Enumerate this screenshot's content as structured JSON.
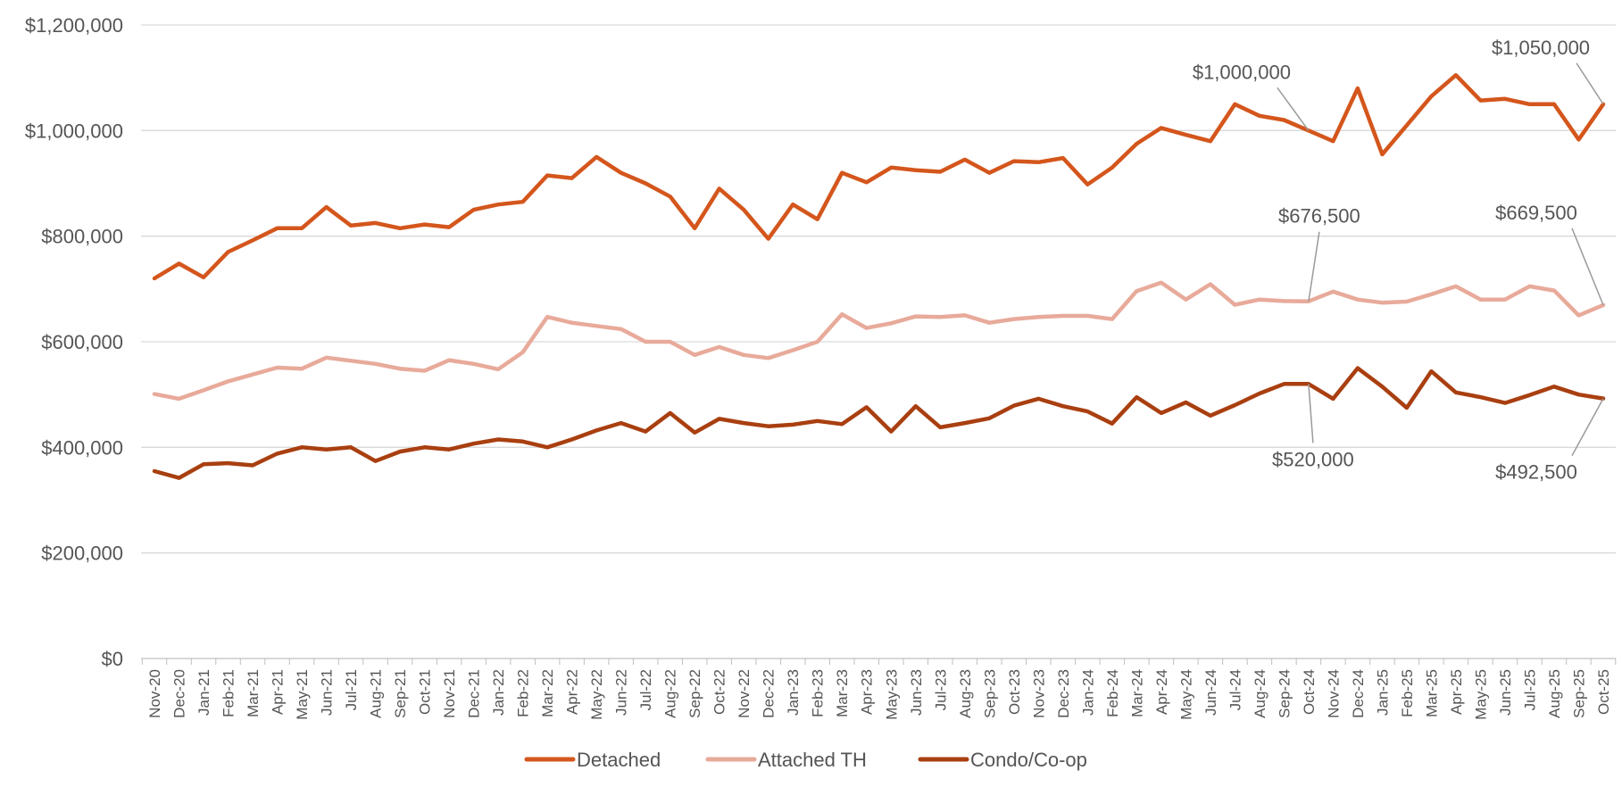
{
  "chart_data": {
    "type": "line",
    "title": "",
    "xlabel": "",
    "ylabel": "",
    "ylim": [
      0,
      1200000
    ],
    "yticks": [
      0,
      200000,
      400000,
      600000,
      800000,
      1000000,
      1200000
    ],
    "ytick_labels": [
      "$0",
      "$200,000",
      "$400,000",
      "$600,000",
      "$800,000",
      "$1,000,000",
      "$1,200,000"
    ],
    "grid": true,
    "legend_position": "bottom-center",
    "categories": [
      "Nov-20",
      "Dec-20",
      "Jan-21",
      "Feb-21",
      "Mar-21",
      "Apr-21",
      "May-21",
      "Jun-21",
      "Jul-21",
      "Aug-21",
      "Sep-21",
      "Oct-21",
      "Nov-21",
      "Dec-21",
      "Jan-22",
      "Feb-22",
      "Mar-22",
      "Apr-22",
      "May-22",
      "Jun-22",
      "Jul-22",
      "Aug-22",
      "Sep-22",
      "Oct-22",
      "Nov-22",
      "Dec-22",
      "Jan-23",
      "Feb-23",
      "Mar-23",
      "Apr-23",
      "May-23",
      "Jun-23",
      "Jul-23",
      "Aug-23",
      "Sep-23",
      "Oct-23",
      "Nov-23",
      "Dec-23",
      "Jan-24",
      "Feb-24",
      "Mar-24",
      "Apr-24",
      "May-24",
      "Jun-24",
      "Jul-24",
      "Aug-24",
      "Sep-24",
      "Oct-24",
      "Nov-24",
      "Dec-24",
      "Jan-25",
      "Feb-25",
      "Mar-25",
      "Apr-25",
      "May-25",
      "Jun-25",
      "Jul-25",
      "Aug-25",
      "Sep-25",
      "Oct-25"
    ],
    "series": [
      {
        "name": "Detached",
        "color": "#d4561c",
        "values": [
          720000,
          748000,
          722000,
          770000,
          792000,
          815000,
          815000,
          855000,
          820000,
          825000,
          815000,
          822000,
          817000,
          850000,
          860000,
          865000,
          915000,
          910000,
          950000,
          920000,
          900000,
          875000,
          815000,
          890000,
          850000,
          795000,
          860000,
          832000,
          920000,
          902000,
          930000,
          925000,
          922000,
          945000,
          920000,
          942000,
          940000,
          948000,
          898000,
          930000,
          975000,
          1005000,
          992000,
          980000,
          1050000,
          1028000,
          1020000,
          1000000,
          980000,
          1080000,
          955000,
          1010000,
          1065000,
          1105000,
          1057000,
          1060000,
          1050000,
          1050000,
          983000,
          1050000
        ]
      },
      {
        "name": "Attached TH",
        "color": "#e8aa9a",
        "values": [
          501000,
          492000,
          508000,
          525000,
          538000,
          551000,
          549000,
          570000,
          564000,
          558000,
          549000,
          545000,
          565000,
          558000,
          548000,
          580000,
          647000,
          636000,
          630000,
          624000,
          600000,
          600000,
          575000,
          590000,
          575000,
          569000,
          584000,
          600000,
          652000,
          626000,
          635000,
          648000,
          647000,
          650000,
          636000,
          643000,
          647000,
          649000,
          649000,
          643000,
          696000,
          712000,
          680000,
          709000,
          670000,
          680000,
          677000,
          676500,
          695000,
          680000,
          674000,
          676000,
          690000,
          705000,
          680000,
          680000,
          705000,
          697000,
          650000,
          669500
        ]
      },
      {
        "name": "Condo/Co-op",
        "color": "#a93f10",
        "values": [
          355000,
          342000,
          368000,
          370000,
          366000,
          388000,
          400000,
          396000,
          400000,
          374000,
          392000,
          400000,
          396000,
          407000,
          415000,
          411000,
          400000,
          415000,
          432000,
          446000,
          430000,
          465000,
          428000,
          454000,
          446000,
          440000,
          443000,
          450000,
          444000,
          476000,
          430000,
          478000,
          438000,
          446000,
          455000,
          479000,
          492000,
          478000,
          468000,
          445000,
          495000,
          465000,
          485000,
          460000,
          480000,
          502000,
          520000,
          520000,
          492000,
          550000,
          515000,
          475000,
          544000,
          504000,
          495000,
          484000,
          499000,
          515000,
          500000,
          492500
        ]
      }
    ],
    "annotations": [
      {
        "text": "$1,000,000",
        "series": 0,
        "index": 47
      },
      {
        "text": "$1,050,000",
        "series": 0,
        "index": 59
      },
      {
        "text": "$676,500",
        "series": 1,
        "index": 47
      },
      {
        "text": "$669,500",
        "series": 1,
        "index": 59
      },
      {
        "text": "$520,000",
        "series": 2,
        "index": 47
      },
      {
        "text": "$492,500",
        "series": 2,
        "index": 59
      }
    ]
  }
}
